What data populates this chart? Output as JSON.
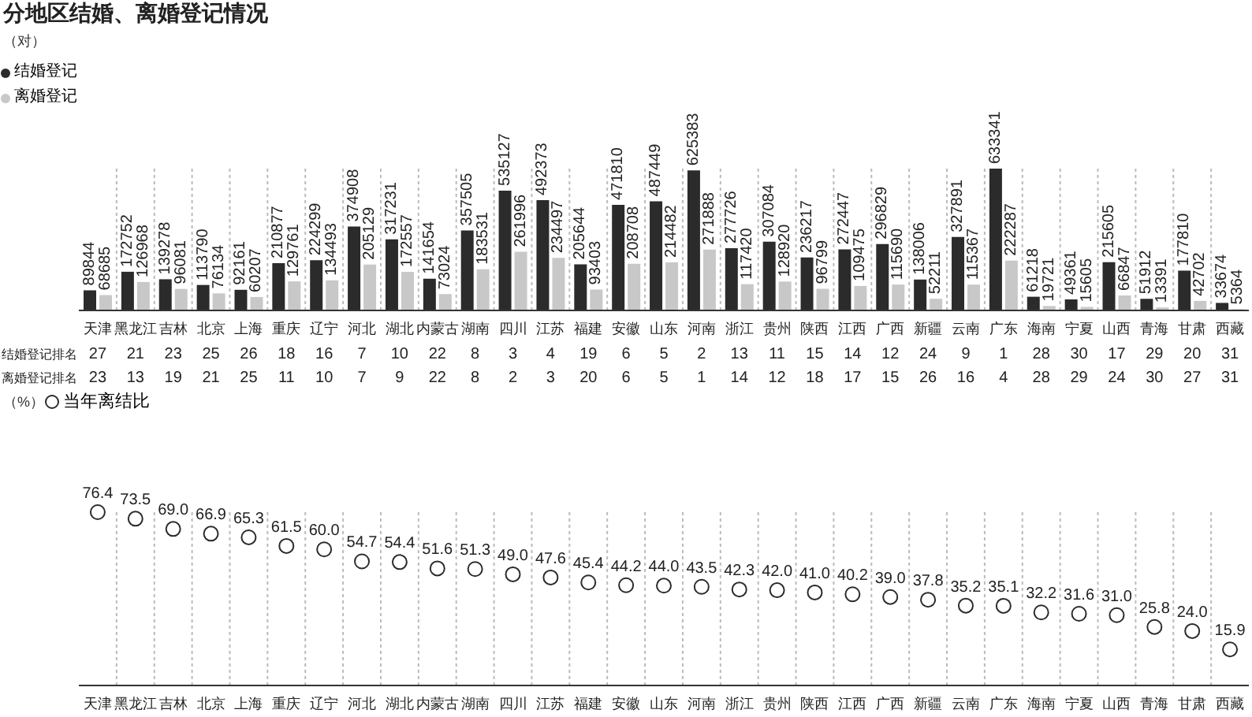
{
  "chart_data": [
    {
      "type": "bar",
      "title": "分地区结婚、离婚登记情况",
      "ylabel": "（对）",
      "categories": [
        "天津",
        "黑龙江",
        "吉林",
        "北京",
        "上海",
        "重庆",
        "辽宁",
        "河北",
        "湖北",
        "内蒙古",
        "湖南",
        "四川",
        "江苏",
        "福建",
        "安徽",
        "山东",
        "河南",
        "浙江",
        "贵州",
        "陕西",
        "江西",
        "广西",
        "新疆",
        "云南",
        "广东",
        "海南",
        "宁夏",
        "山西",
        "青海",
        "甘肃",
        "西藏"
      ],
      "series": [
        {
          "name": "结婚登记",
          "color": "#2b2b2b",
          "values": [
            89844,
            172752,
            139278,
            113790,
            92161,
            210877,
            224299,
            374908,
            317231,
            141654,
            357505,
            535127,
            492373,
            205644,
            471810,
            487449,
            625383,
            277726,
            307084,
            236217,
            272447,
            296829,
            138006,
            327891,
            633341,
            61218,
            49361,
            215605,
            51912,
            177810,
            33674
          ]
        },
        {
          "name": "离婚登记",
          "color": "#c8c8c8",
          "values": [
            68685,
            126968,
            96081,
            76134,
            60207,
            129761,
            134493,
            205129,
            172557,
            73024,
            183531,
            261996,
            234497,
            93403,
            208708,
            214482,
            271888,
            117420,
            128920,
            96799,
            109475,
            115690,
            52211,
            115367,
            222287,
            19721,
            15605,
            66847,
            13391,
            42702,
            5364
          ]
        }
      ],
      "data_labels": true,
      "legend": "top left",
      "grid": "x"
    },
    {
      "type": "heatmap",
      "categories": [
        null,
        null,
        null,
        null,
        null,
        null,
        null,
        null,
        null,
        null,
        null,
        null,
        null,
        null,
        null,
        null,
        null,
        null,
        null,
        null,
        null,
        null,
        null,
        null,
        null,
        null,
        null,
        null,
        null,
        null,
        null
      ],
      "y_categories": [
        "结婚登记排名",
        "离婚登记排名"
      ],
      "cells": [
        [
          27,
          21,
          23,
          25,
          26,
          18,
          16,
          7,
          10,
          22,
          8,
          3,
          4,
          19,
          6,
          5,
          2,
          13,
          11,
          15,
          14,
          12,
          24,
          9,
          1,
          28,
          30,
          17,
          29,
          20,
          31
        ],
        [
          23,
          13,
          19,
          21,
          25,
          11,
          10,
          7,
          9,
          22,
          8,
          2,
          3,
          20,
          6,
          5,
          1,
          14,
          12,
          18,
          17,
          15,
          26,
          16,
          4,
          28,
          29,
          24,
          30,
          27,
          31
        ]
      ],
      "data_labels": true
    },
    {
      "type": "scatter",
      "ylabel": "（%）",
      "categories": [
        "天津",
        "黑龙江",
        "吉林",
        "北京",
        "上海",
        "重庆",
        "辽宁",
        "河北",
        "湖北",
        "内蒙古",
        "湖南",
        "四川",
        "江苏",
        "福建",
        "安徽",
        "山东",
        "河南",
        "浙江",
        "贵州",
        "陕西",
        "江西",
        "广西",
        "新疆",
        "云南",
        "广东",
        "海南",
        "宁夏",
        "山西",
        "青海",
        "甘肃",
        "西藏"
      ],
      "series": [
        {
          "name": "当年离结比",
          "color": "#2b2b2b",
          "values": [
            76.4,
            73.5,
            69.0,
            66.9,
            65.3,
            61.5,
            60.0,
            54.7,
            54.4,
            51.6,
            51.3,
            49.0,
            47.6,
            45.4,
            44.2,
            44.0,
            43.5,
            42.3,
            42.0,
            41.0,
            40.2,
            39.0,
            37.8,
            35.2,
            35.1,
            32.2,
            31.6,
            31.0,
            25.8,
            24.0,
            15.9
          ],
          "value_labels": [
            "76.4",
            "73.5",
            "69.0",
            "66.9",
            "65.3",
            "61.5",
            "60.0",
            "54.7",
            "54.4",
            "51.6",
            "51.3",
            "49.0",
            "47.6",
            "45.4",
            "44.2",
            "44.0",
            "43.5",
            "42.3",
            "42.0",
            "41.0",
            "40.2",
            "39.0",
            "37.8",
            "35.2",
            "35.1",
            "32.2",
            "31.6",
            "31.0",
            "25.8",
            "24.0",
            "15.9"
          ]
        }
      ],
      "marker": "circle",
      "legend": "top left",
      "grid": "x"
    }
  ]
}
